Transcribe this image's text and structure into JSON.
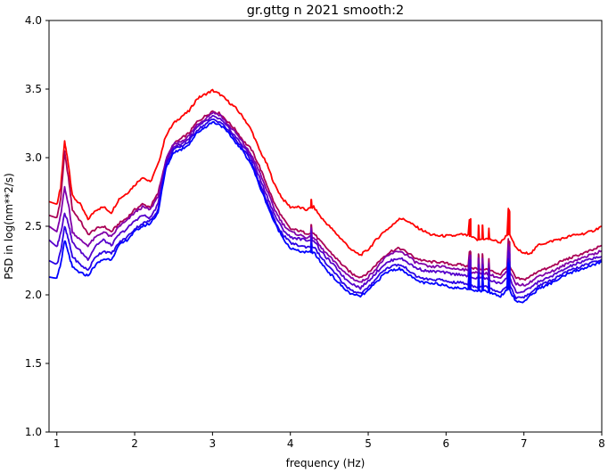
{
  "chart_data": {
    "type": "line",
    "title": "gr.gttg n 2021 smooth:2",
    "xlabel": "frequency (Hz)",
    "ylabel": "PSD in log(nm**2/s)",
    "xlim": [
      0.9,
      8.0
    ],
    "ylim": [
      1.0,
      4.0
    ],
    "xticks": [
      1,
      2,
      3,
      4,
      5,
      6,
      7,
      8
    ],
    "yticks": [
      1.0,
      1.5,
      2.0,
      2.5,
      3.0,
      3.5,
      4.0
    ],
    "grid": false,
    "x": [
      0.9,
      1.0,
      1.05,
      1.1,
      1.15,
      1.2,
      1.3,
      1.4,
      1.5,
      1.6,
      1.7,
      1.8,
      1.9,
      2.0,
      2.1,
      2.2,
      2.3,
      2.4,
      2.5,
      2.6,
      2.7,
      2.8,
      2.9,
      3.0,
      3.1,
      3.2,
      3.3,
      3.4,
      3.5,
      3.6,
      3.7,
      3.8,
      3.9,
      4.0,
      4.1,
      4.2,
      4.3,
      4.4,
      4.5,
      4.6,
      4.7,
      4.8,
      4.9,
      5.0,
      5.1,
      5.2,
      5.3,
      5.4,
      5.5,
      5.6,
      5.7,
      5.8,
      5.9,
      6.0,
      6.1,
      6.2,
      6.3,
      6.4,
      6.5,
      6.6,
      6.7,
      6.8,
      6.9,
      7.0,
      7.1,
      7.2,
      7.3,
      7.4,
      7.5,
      7.6,
      7.7,
      7.8,
      7.9,
      8.0
    ],
    "series": [
      {
        "color": "#ff0000",
        "values": [
          2.68,
          2.66,
          2.78,
          3.12,
          2.95,
          2.72,
          2.66,
          2.55,
          2.62,
          2.64,
          2.6,
          2.7,
          2.74,
          2.8,
          2.86,
          2.82,
          2.95,
          3.16,
          3.25,
          3.3,
          3.34,
          3.43,
          3.46,
          3.49,
          3.46,
          3.41,
          3.36,
          3.29,
          3.2,
          3.06,
          2.95,
          2.8,
          2.7,
          2.64,
          2.64,
          2.62,
          2.64,
          2.56,
          2.5,
          2.44,
          2.38,
          2.32,
          2.29,
          2.33,
          2.4,
          2.46,
          2.5,
          2.56,
          2.54,
          2.5,
          2.47,
          2.44,
          2.43,
          2.43,
          2.43,
          2.44,
          2.43,
          2.4,
          2.41,
          2.4,
          2.38,
          2.45,
          2.34,
          2.3,
          2.31,
          2.37,
          2.38,
          2.4,
          2.41,
          2.43,
          2.44,
          2.45,
          2.47,
          2.5
        ]
      },
      {
        "color": "#aa0055",
        "values": [
          2.58,
          2.56,
          2.7,
          3.04,
          2.85,
          2.62,
          2.54,
          2.44,
          2.48,
          2.5,
          2.46,
          2.52,
          2.56,
          2.62,
          2.66,
          2.64,
          2.74,
          2.98,
          3.1,
          3.14,
          3.18,
          3.26,
          3.3,
          3.34,
          3.32,
          3.26,
          3.2,
          3.12,
          3.06,
          2.94,
          2.8,
          2.66,
          2.56,
          2.48,
          2.47,
          2.45,
          2.45,
          2.38,
          2.32,
          2.26,
          2.2,
          2.15,
          2.13,
          2.16,
          2.22,
          2.28,
          2.32,
          2.34,
          2.31,
          2.27,
          2.25,
          2.24,
          2.24,
          2.23,
          2.22,
          2.22,
          2.2,
          2.19,
          2.19,
          2.17,
          2.15,
          2.22,
          2.12,
          2.11,
          2.14,
          2.18,
          2.19,
          2.22,
          2.25,
          2.27,
          2.29,
          2.31,
          2.33,
          2.36
        ]
      },
      {
        "color": "#8000aa",
        "values": [
          2.5,
          2.46,
          2.58,
          2.78,
          2.66,
          2.46,
          2.4,
          2.36,
          2.42,
          2.46,
          2.42,
          2.5,
          2.54,
          2.6,
          2.64,
          2.62,
          2.72,
          2.98,
          3.1,
          3.12,
          3.16,
          3.24,
          3.28,
          3.33,
          3.31,
          3.24,
          3.18,
          3.1,
          3.02,
          2.9,
          2.76,
          2.62,
          2.52,
          2.46,
          2.44,
          2.42,
          2.42,
          2.34,
          2.28,
          2.22,
          2.16,
          2.12,
          2.09,
          2.13,
          2.19,
          2.26,
          2.3,
          2.32,
          2.29,
          2.24,
          2.22,
          2.2,
          2.21,
          2.2,
          2.19,
          2.19,
          2.17,
          2.16,
          2.16,
          2.14,
          2.12,
          2.18,
          2.08,
          2.07,
          2.1,
          2.14,
          2.16,
          2.18,
          2.21,
          2.24,
          2.26,
          2.28,
          2.3,
          2.32
        ]
      },
      {
        "color": "#5500cc",
        "values": [
          2.4,
          2.35,
          2.45,
          2.6,
          2.52,
          2.38,
          2.32,
          2.26,
          2.36,
          2.4,
          2.36,
          2.44,
          2.48,
          2.54,
          2.58,
          2.56,
          2.66,
          2.96,
          3.08,
          3.1,
          3.14,
          3.22,
          3.26,
          3.3,
          3.28,
          3.22,
          3.15,
          3.08,
          3.0,
          2.86,
          2.72,
          2.58,
          2.48,
          2.42,
          2.41,
          2.4,
          2.4,
          2.31,
          2.25,
          2.19,
          2.12,
          2.08,
          2.05,
          2.1,
          2.16,
          2.22,
          2.25,
          2.27,
          2.24,
          2.2,
          2.18,
          2.17,
          2.17,
          2.16,
          2.15,
          2.15,
          2.13,
          2.12,
          2.12,
          2.1,
          2.08,
          2.14,
          2.02,
          2.02,
          2.06,
          2.1,
          2.12,
          2.15,
          2.18,
          2.21,
          2.23,
          2.25,
          2.27,
          2.28
        ]
      },
      {
        "color": "#2a00e6",
        "values": [
          2.25,
          2.22,
          2.32,
          2.5,
          2.4,
          2.28,
          2.22,
          2.18,
          2.28,
          2.32,
          2.3,
          2.38,
          2.42,
          2.48,
          2.52,
          2.54,
          2.62,
          2.94,
          3.06,
          3.08,
          3.12,
          3.2,
          3.24,
          3.28,
          3.26,
          3.2,
          3.13,
          3.06,
          2.97,
          2.82,
          2.68,
          2.54,
          2.44,
          2.38,
          2.36,
          2.35,
          2.35,
          2.27,
          2.2,
          2.14,
          2.07,
          2.03,
          2.01,
          2.05,
          2.12,
          2.18,
          2.21,
          2.22,
          2.19,
          2.14,
          2.12,
          2.11,
          2.11,
          2.1,
          2.09,
          2.09,
          2.07,
          2.06,
          2.06,
          2.04,
          2.02,
          2.08,
          1.98,
          1.98,
          2.02,
          2.07,
          2.09,
          2.12,
          2.15,
          2.18,
          2.2,
          2.22,
          2.24,
          2.26
        ]
      },
      {
        "color": "#0000ff",
        "values": [
          2.13,
          2.12,
          2.22,
          2.4,
          2.3,
          2.2,
          2.16,
          2.14,
          2.22,
          2.26,
          2.26,
          2.36,
          2.4,
          2.46,
          2.5,
          2.52,
          2.6,
          2.92,
          3.04,
          3.06,
          3.1,
          3.18,
          3.22,
          3.26,
          3.24,
          3.18,
          3.11,
          3.04,
          2.95,
          2.8,
          2.66,
          2.52,
          2.42,
          2.34,
          2.32,
          2.31,
          2.31,
          2.23,
          2.16,
          2.1,
          2.04,
          2.0,
          1.99,
          2.03,
          2.09,
          2.15,
          2.18,
          2.19,
          2.16,
          2.11,
          2.09,
          2.08,
          2.08,
          2.07,
          2.05,
          2.05,
          2.04,
          2.03,
          2.03,
          2.01,
          1.99,
          2.05,
          1.95,
          1.95,
          2.0,
          2.05,
          2.07,
          2.1,
          2.13,
          2.16,
          2.18,
          2.2,
          2.22,
          2.24
        ]
      }
    ],
    "spikes": [
      {
        "x": 4.27,
        "dy": 0.06
      },
      {
        "x": 6.31,
        "dy": 0.12
      },
      {
        "x": 6.42,
        "dy": 0.1
      },
      {
        "x": 6.47,
        "dy": 0.1
      },
      {
        "x": 6.55,
        "dy": 0.08
      },
      {
        "x": 6.81,
        "dy": 0.18
      }
    ]
  }
}
